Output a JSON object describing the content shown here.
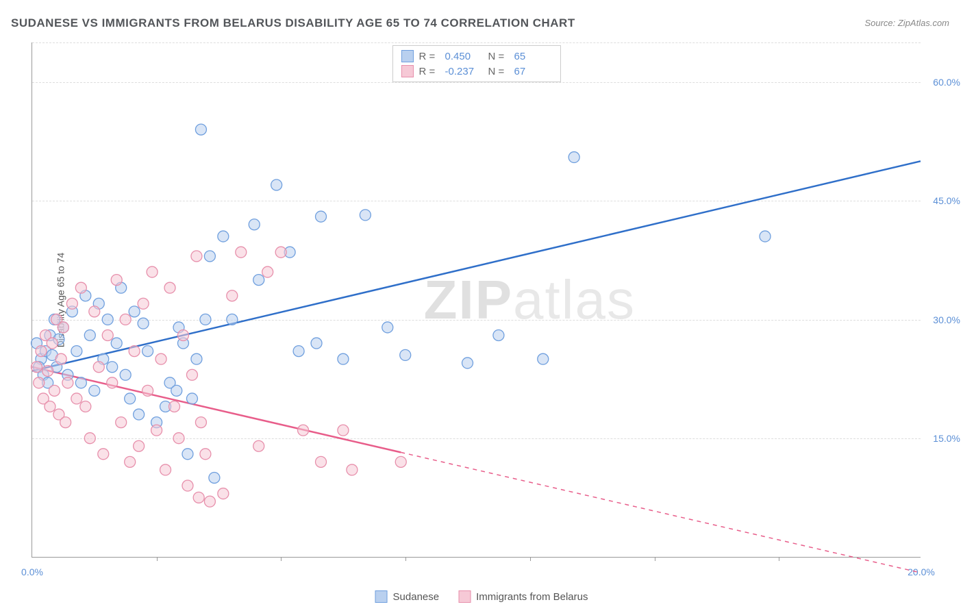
{
  "title": "SUDANESE VS IMMIGRANTS FROM BELARUS DISABILITY AGE 65 TO 74 CORRELATION CHART",
  "source": "Source: ZipAtlas.com",
  "yaxis_title": "Disability Age 65 to 74",
  "watermark_zip": "ZIP",
  "watermark_atlas": "atlas",
  "chart": {
    "type": "scatter",
    "xlim": [
      0,
      20
    ],
    "ylim": [
      0,
      65
    ],
    "xticks": [
      0,
      20
    ],
    "xtick_marks": [
      2.8,
      5.6,
      8.4,
      11.2,
      14.0,
      16.8
    ],
    "yticks": [
      15,
      30,
      45,
      60
    ],
    "grid_color": "#dddddd",
    "background": "#ffffff",
    "marker_radius": 8,
    "marker_opacity": 0.55,
    "line_width": 2.5
  },
  "series": [
    {
      "name": "Sudanese",
      "color_fill": "#b9d0ef",
      "color_stroke": "#6f9fde",
      "color_line": "#2f6fc9",
      "line_solid_to_x": 20,
      "trend": {
        "x1": 0,
        "y1": 23.5,
        "x2": 20,
        "y2": 50
      },
      "R": "0.450",
      "N": "65",
      "points": [
        [
          0.1,
          27
        ],
        [
          0.2,
          25
        ],
        [
          0.15,
          24
        ],
        [
          0.3,
          26
        ],
        [
          0.25,
          23
        ],
        [
          0.4,
          28
        ],
        [
          0.35,
          22
        ],
        [
          0.5,
          30
        ],
        [
          0.45,
          25.5
        ],
        [
          0.6,
          27.5
        ],
        [
          0.55,
          24
        ],
        [
          0.7,
          29
        ],
        [
          0.8,
          23
        ],
        [
          0.9,
          31
        ],
        [
          1.0,
          26
        ],
        [
          1.1,
          22
        ],
        [
          1.2,
          33
        ],
        [
          1.3,
          28
        ],
        [
          1.4,
          21
        ],
        [
          1.5,
          32
        ],
        [
          1.6,
          25
        ],
        [
          1.7,
          30
        ],
        [
          1.8,
          24
        ],
        [
          1.9,
          27
        ],
        [
          2.0,
          34
        ],
        [
          2.1,
          23
        ],
        [
          2.2,
          20
        ],
        [
          2.3,
          31
        ],
        [
          2.4,
          18
        ],
        [
          2.5,
          29.5
        ],
        [
          2.6,
          26
        ],
        [
          2.8,
          17
        ],
        [
          3.0,
          19
        ],
        [
          3.1,
          22
        ],
        [
          3.25,
          21
        ],
        [
          3.3,
          29
        ],
        [
          3.4,
          27
        ],
        [
          3.5,
          13
        ],
        [
          3.6,
          20
        ],
        [
          3.7,
          25
        ],
        [
          3.8,
          54
        ],
        [
          3.9,
          30
        ],
        [
          4.0,
          38
        ],
        [
          4.1,
          10
        ],
        [
          4.3,
          40.5
        ],
        [
          4.5,
          30
        ],
        [
          5.0,
          42
        ],
        [
          5.1,
          35
        ],
        [
          5.5,
          47
        ],
        [
          5.8,
          38.5
        ],
        [
          6.0,
          26
        ],
        [
          6.4,
          27
        ],
        [
          6.5,
          43
        ],
        [
          7.0,
          25
        ],
        [
          7.5,
          43.2
        ],
        [
          8.0,
          29
        ],
        [
          8.4,
          25.5
        ],
        [
          9.8,
          24.5
        ],
        [
          10.5,
          28
        ],
        [
          11.5,
          25
        ],
        [
          12.2,
          50.5
        ],
        [
          16.5,
          40.5
        ]
      ]
    },
    {
      "name": "Immigrants from Belarus",
      "color_fill": "#f6c9d6",
      "color_stroke": "#e78fab",
      "color_line": "#e85d8a",
      "line_solid_to_x": 8.3,
      "trend": {
        "x1": 0,
        "y1": 24,
        "x2": 20,
        "y2": -2
      },
      "R": "-0.237",
      "N": "67",
      "points": [
        [
          0.1,
          24
        ],
        [
          0.15,
          22
        ],
        [
          0.2,
          26
        ],
        [
          0.25,
          20
        ],
        [
          0.3,
          28
        ],
        [
          0.35,
          23.5
        ],
        [
          0.4,
          19
        ],
        [
          0.45,
          27
        ],
        [
          0.5,
          21
        ],
        [
          0.55,
          30
        ],
        [
          0.6,
          18
        ],
        [
          0.65,
          25
        ],
        [
          0.7,
          29
        ],
        [
          0.75,
          17
        ],
        [
          0.8,
          22
        ],
        [
          0.9,
          32
        ],
        [
          1.0,
          20
        ],
        [
          1.1,
          34
        ],
        [
          1.2,
          19
        ],
        [
          1.3,
          15
        ],
        [
          1.4,
          31
        ],
        [
          1.5,
          24
        ],
        [
          1.6,
          13
        ],
        [
          1.7,
          28
        ],
        [
          1.8,
          22
        ],
        [
          1.9,
          35
        ],
        [
          2.0,
          17
        ],
        [
          2.1,
          30
        ],
        [
          2.2,
          12
        ],
        [
          2.3,
          26
        ],
        [
          2.4,
          14
        ],
        [
          2.5,
          32
        ],
        [
          2.6,
          21
        ],
        [
          2.7,
          36
        ],
        [
          2.8,
          16
        ],
        [
          2.9,
          25
        ],
        [
          3.0,
          11
        ],
        [
          3.1,
          34
        ],
        [
          3.2,
          19
        ],
        [
          3.3,
          15
        ],
        [
          3.4,
          28
        ],
        [
          3.5,
          9
        ],
        [
          3.6,
          23
        ],
        [
          3.7,
          38
        ],
        [
          3.75,
          7.5
        ],
        [
          3.8,
          17
        ],
        [
          3.9,
          13
        ],
        [
          4.0,
          7
        ],
        [
          4.3,
          8
        ],
        [
          4.5,
          33
        ],
        [
          4.7,
          38.5
        ],
        [
          5.1,
          14
        ],
        [
          5.3,
          36
        ],
        [
          5.6,
          38.5
        ],
        [
          6.1,
          16
        ],
        [
          6.5,
          12
        ],
        [
          7.0,
          16
        ],
        [
          7.2,
          11
        ],
        [
          8.3,
          12
        ]
      ]
    }
  ],
  "stats_legend": {
    "r_label": "R =",
    "n_label": "N ="
  },
  "bottom_legend": {
    "items": [
      {
        "label": "Sudanese",
        "fill": "#b9d0ef",
        "stroke": "#6f9fde"
      },
      {
        "label": "Immigrants from Belarus",
        "fill": "#f6c9d6",
        "stroke": "#e78fab"
      }
    ]
  }
}
